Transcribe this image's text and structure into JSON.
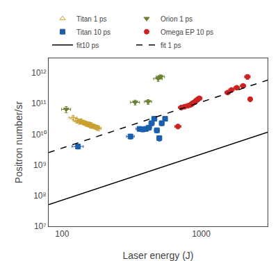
{
  "chart_data": {
    "type": "scatter",
    "xlabel": "Laser energy (J)",
    "ylabel": "Positron number/sr",
    "log": true,
    "grid": false,
    "legend": "top",
    "xlim": [
      80,
      3000
    ],
    "ylim": [
      10000000.0,
      3000000000000.0
    ],
    "xticks": [
      100,
      1000
    ],
    "yticks": [
      {
        "value": 10000000.0,
        "label": "10⁷"
      },
      {
        "value": 100000000.0,
        "label": "10⁸"
      },
      {
        "value": 1000000000.0,
        "label": "10⁹"
      },
      {
        "value": 10000000000.0,
        "label": "10¹⁰"
      },
      {
        "value": 100000000000.0,
        "label": "10¹¹"
      },
      {
        "value": 1000000000000.0,
        "label": "10¹²"
      }
    ],
    "series": [
      {
        "name": "Titan 1 ps",
        "type": "scatter",
        "marker": "triangle-up-open",
        "color": "#c8a030",
        "x": [
          120,
          128,
          133,
          137,
          140,
          143,
          147,
          150,
          153,
          157,
          160,
          163,
          168,
          173,
          178,
          183
        ],
        "values": [
          35000000000.0,
          28000000000.0,
          26000000000.0,
          27000000000.0,
          25000000000.0,
          24000000000.0,
          23000000000.0,
          22000000000.0,
          21500000000.0,
          21000000000.0,
          20000000000.0,
          19500000000.0,
          18500000000.0,
          17500000000.0,
          16500000000.0,
          16000000000.0
        ],
        "x_err": [
          8,
          8,
          8,
          8,
          8,
          8,
          8,
          8,
          8,
          8,
          8,
          8,
          8,
          8,
          8,
          8
        ],
        "y_err": [
          6000000000.0,
          5000000000.0,
          5000000000.0,
          5000000000.0,
          4000000000.0,
          4000000000.0,
          4000000000.0,
          4000000000.0,
          4000000000.0,
          4000000000.0,
          4000000000.0,
          4000000000.0,
          3000000000.0,
          3000000000.0,
          3000000000.0,
          3000000000.0
        ]
      },
      {
        "name": "Orion 1 ps",
        "type": "scatter",
        "marker": "triangle-down",
        "color": "#6b8030",
        "x": [
          107,
          335,
          415,
          490,
          510
        ],
        "values": [
          65000000000.0,
          110000000000.0,
          115000000000.0,
          650000000000.0,
          750000000000.0
        ],
        "x_err": [
          8,
          25,
          25,
          35,
          35
        ],
        "y_err": [
          15000000000.0,
          20000000000.0,
          20000000000.0,
          120000000000.0,
          120000000000.0
        ]
      },
      {
        "name": "Titan 10 ps",
        "type": "scatter",
        "marker": "square",
        "color": "#1a5fad",
        "x": [
          130,
          310,
          360,
          380,
          400,
          420,
          440,
          460,
          480,
          500,
          520,
          550
        ],
        "values": [
          4000000000.0,
          8500000000.0,
          15000000000.0,
          14500000000.0,
          15000000000.0,
          16500000000.0,
          23000000000.0,
          32000000000.0,
          13500000000.0,
          7500000000.0,
          23000000000.0,
          32000000000.0
        ],
        "x_err": [
          12,
          20,
          20,
          20,
          20,
          20,
          20,
          20,
          20,
          20,
          20,
          20
        ],
        "y_err": [
          700000000.0,
          1500000000.0,
          2500000000.0,
          2500000000.0,
          2500000000.0,
          3000000000.0,
          4000000000.0,
          5000000000.0,
          2500000000.0,
          1500000000.0,
          4000000000.0,
          5000000000.0
        ]
      },
      {
        "name": "Omega EP 10 ps",
        "type": "scatter",
        "marker": "circle",
        "color": "#cc2222",
        "x": [
          680,
          720,
          760,
          800,
          830,
          850,
          870,
          890,
          910,
          930,
          950,
          970,
          1550,
          1650,
          1800,
          2000,
          2150,
          2250
        ],
        "values": [
          18000000000.0,
          75000000000.0,
          80000000000.0,
          85000000000.0,
          90000000000.0,
          95000000000.0,
          105000000000.0,
          110000000000.0,
          120000000000.0,
          130000000000.0,
          140000000000.0,
          150000000000.0,
          230000000000.0,
          280000000000.0,
          330000000000.0,
          380000000000.0,
          750000000000.0,
          140000000000.0
        ],
        "x_err": [
          35,
          35,
          40,
          40,
          40,
          40,
          40,
          40,
          40,
          40,
          45,
          45,
          70,
          75,
          80,
          90,
          100,
          75
        ],
        "y_err": [
          3000000000.0,
          12000000000.0,
          13000000000.0,
          13000000000.0,
          13000000000.0,
          13000000000.0,
          15000000000.0,
          15000000000.0,
          15000000000.0,
          15000000000.0,
          20000000000.0,
          20000000000.0,
          35000000000.0,
          45000000000.0,
          50000000000.0,
          55000000000.0,
          130000000000.0,
          25000000000.0
        ]
      },
      {
        "name": "fit10 ps",
        "type": "line",
        "line_style": "solid",
        "color": "#000000",
        "x": [
          80,
          3000
        ],
        "values": [
          50656477,
          11632736250
        ]
      },
      {
        "name": "fit 1 ps",
        "type": "line",
        "line_style": "dashed",
        "color": "#000000",
        "x": [
          80,
          3000
        ],
        "values": [
          2538837940,
          583017890000
        ]
      }
    ]
  }
}
